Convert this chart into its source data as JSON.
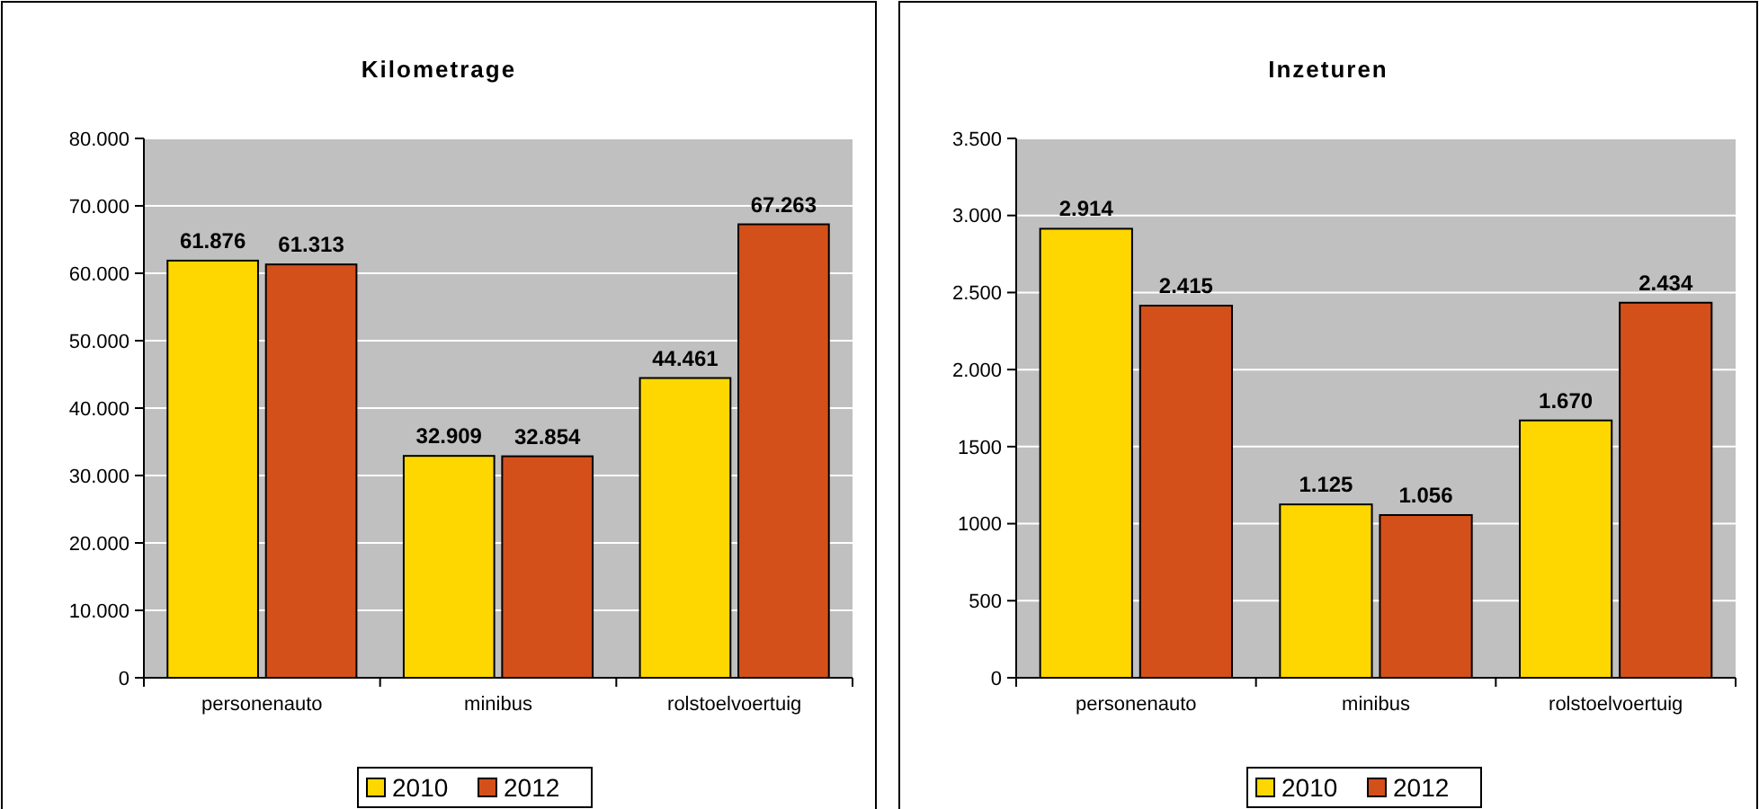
{
  "chart_data": [
    {
      "type": "bar",
      "title": "Kilometrage",
      "categories": [
        "personenauto",
        "minibus",
        "rolstoelvoertuig"
      ],
      "series": [
        {
          "name": "2010",
          "color": "#ffd700",
          "values": [
            61876,
            32909,
            44461
          ],
          "value_labels": [
            "61.876",
            "32.909",
            "44.461"
          ]
        },
        {
          "name": "2012",
          "color": "#d4501a",
          "values": [
            61313,
            32854,
            67263
          ],
          "value_labels": [
            "61.313",
            "32.854",
            "67.263"
          ]
        }
      ],
      "ylim": [
        0,
        80000
      ],
      "yticks": [
        0,
        {
          "value": 10000,
          "label": "10.000"
        },
        {
          "value": 20000,
          "label": "20.000"
        },
        {
          "value": 30000,
          "label": "30.000"
        },
        {
          "value": 40000,
          "label": "40.000"
        },
        {
          "value": 50000,
          "label": "50.000"
        },
        {
          "value": 60000,
          "label": "60.000"
        },
        {
          "value": 70000,
          "label": "70.000"
        },
        {
          "value": 80000,
          "label": "80.000"
        }
      ],
      "grid": "y",
      "legend": "bottom"
    },
    {
      "type": "bar",
      "title": "Inzeturen",
      "categories": [
        "personenauto",
        "minibus",
        "rolstoelvoertuig"
      ],
      "series": [
        {
          "name": "2010",
          "color": "#ffd700",
          "values": [
            2914,
            1125,
            1670
          ],
          "value_labels": [
            "2.914",
            "1.125",
            "1.670"
          ]
        },
        {
          "name": "2012",
          "color": "#d4501a",
          "values": [
            2415,
            1056,
            2434
          ],
          "value_labels": [
            "2.415",
            "1.056",
            "2.434"
          ]
        }
      ],
      "ylim": [
        0,
        3500
      ],
      "yticks": [
        0,
        500,
        1000,
        1500,
        {
          "value": 2000,
          "label": "2.000"
        },
        {
          "value": 2500,
          "label": "2.500"
        },
        {
          "value": 3000,
          "label": "3.000"
        },
        {
          "value": 3500,
          "label": "3.500"
        }
      ],
      "grid": "y",
      "legend": "bottom"
    }
  ]
}
